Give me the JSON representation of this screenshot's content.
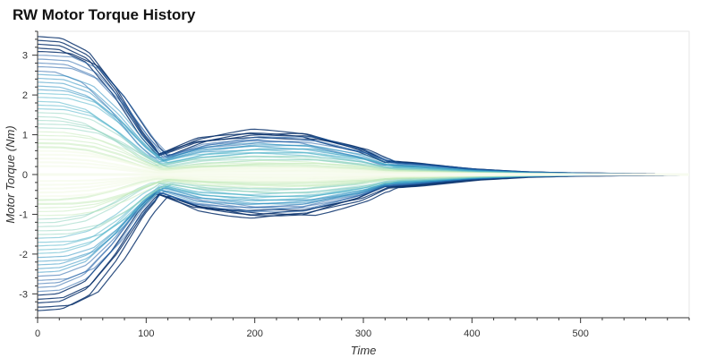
{
  "chart_data": {
    "type": "line",
    "title": "RW Motor Torque History",
    "xlabel": "Time",
    "ylabel": "Motor Torque (Nm)",
    "xlim": [
      0,
      600
    ],
    "ylim": [
      -3.6,
      3.6
    ],
    "x_ticks": [
      0,
      100,
      200,
      300,
      400,
      500
    ],
    "y_ticks": [
      -3,
      -2,
      -1,
      0,
      1,
      2,
      3
    ],
    "x_tick_labels": [
      "0",
      "100",
      "200",
      "300",
      "400",
      "500"
    ],
    "y_tick_labels": [
      "-3",
      "-2",
      "-1",
      "0",
      "1",
      "2",
      "3"
    ],
    "grid": false,
    "legend": "none",
    "envelope": {
      "time": [
        0,
        25,
        50,
        75,
        100,
        115,
        150,
        200,
        250,
        300,
        325,
        350,
        400,
        450,
        500,
        550,
        600
      ],
      "upper": [
        3.5,
        3.45,
        3.1,
        2.2,
        1.05,
        0.55,
        0.95,
        1.15,
        1.1,
        0.7,
        0.35,
        0.3,
        0.15,
        0.07,
        0.04,
        0.03,
        0.02
      ],
      "lower": [
        -3.5,
        -3.45,
        -3.1,
        -2.2,
        -1.05,
        -0.55,
        -0.95,
        -1.15,
        -1.1,
        -0.7,
        -0.35,
        -0.3,
        -0.15,
        -0.07,
        -0.04,
        -0.03,
        -0.02
      ]
    },
    "colors": [
      "#08306b",
      "#1f5fa6",
      "#2c8fc0",
      "#4fb3c9",
      "#8fd3c0",
      "#c7ebbc",
      "#f2f9e6"
    ]
  }
}
